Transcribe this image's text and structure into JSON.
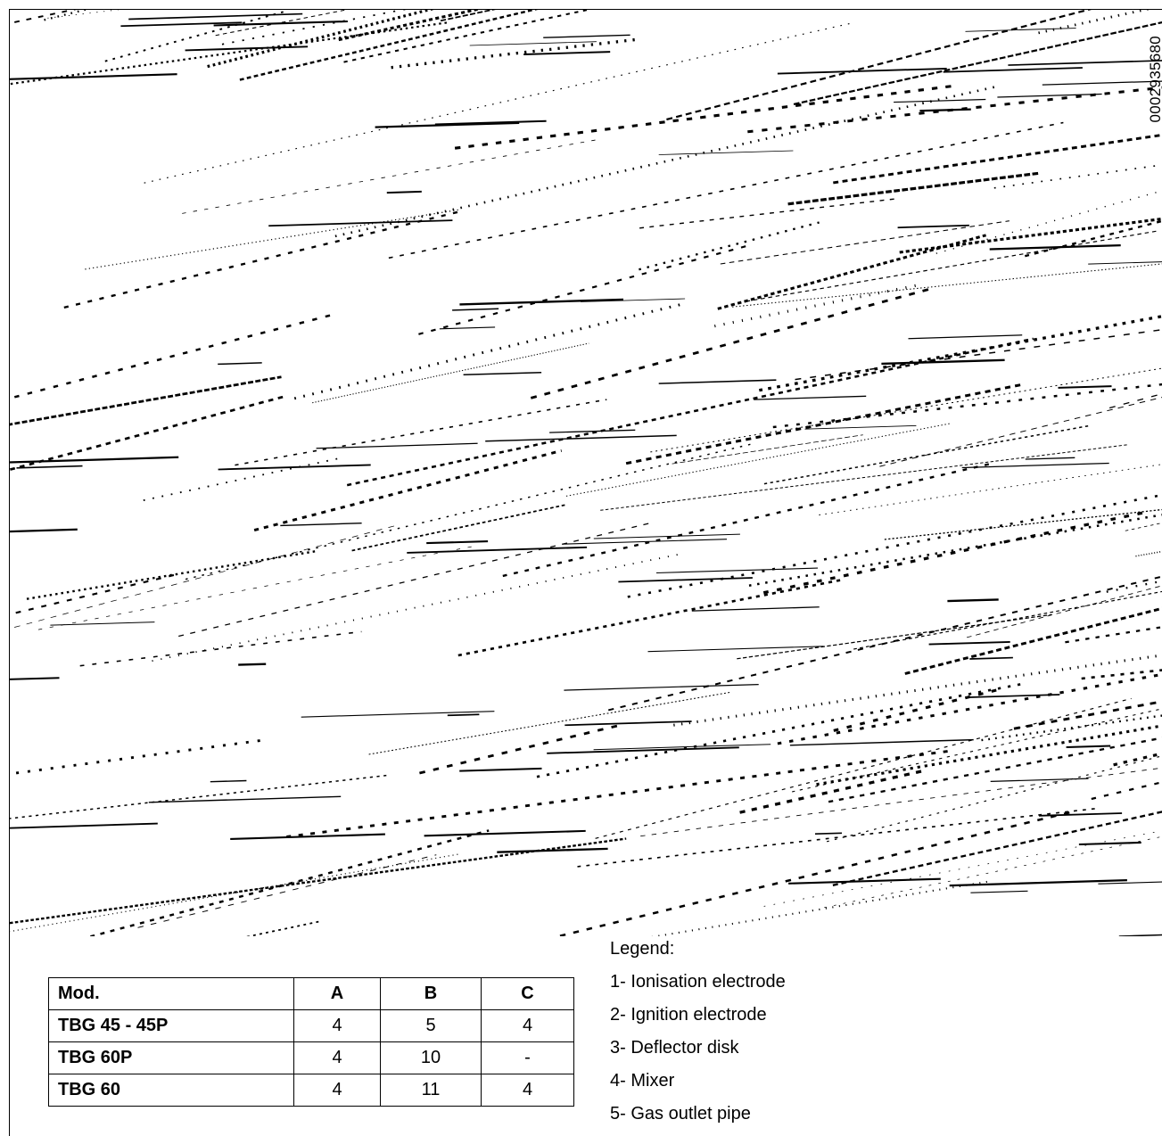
{
  "doc_code": "0002935680",
  "drawing": {
    "stroke_color": "#000000",
    "background": "#ffffff"
  },
  "table": {
    "headers": [
      "Mod.",
      "A",
      "B",
      "C"
    ],
    "rows": [
      [
        "TBG 45 - 45P",
        "4",
        "5",
        "4"
      ],
      [
        "TBG 60P",
        "4",
        "10",
        "-"
      ],
      [
        "TBG 60",
        "4",
        "11",
        "4"
      ]
    ]
  },
  "legend": {
    "title": "Legend:",
    "items": [
      "1- Ionisation electrode",
      "2- Ignition electrode",
      "3- Deflector disk",
      "4- Mixer",
      "5- Gas outlet pipe"
    ]
  }
}
